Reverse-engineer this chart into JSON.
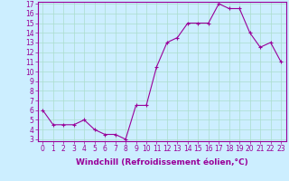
{
  "x": [
    0,
    1,
    2,
    3,
    4,
    5,
    6,
    7,
    8,
    9,
    10,
    11,
    12,
    13,
    14,
    15,
    16,
    17,
    18,
    19,
    20,
    21,
    22,
    23
  ],
  "y": [
    6,
    4.5,
    4.5,
    4.5,
    5,
    4,
    3.5,
    3.5,
    3,
    6.5,
    6.5,
    10.5,
    13,
    13.5,
    15,
    15,
    15,
    17,
    16.5,
    16.5,
    14,
    12.5,
    13,
    11
  ],
  "line_color": "#990099",
  "marker_color": "#990099",
  "bg_color": "#cceeff",
  "grid_color": "#aaddcc",
  "xlabel": "Windchill (Refroidissement éolien,°C)",
  "ylim": [
    3,
    17
  ],
  "xlim": [
    -0.5,
    23.5
  ],
  "yticks": [
    3,
    4,
    5,
    6,
    7,
    8,
    9,
    10,
    11,
    12,
    13,
    14,
    15,
    16,
    17
  ],
  "xticks": [
    0,
    1,
    2,
    3,
    4,
    5,
    6,
    7,
    8,
    9,
    10,
    11,
    12,
    13,
    14,
    15,
    16,
    17,
    18,
    19,
    20,
    21,
    22,
    23
  ],
  "tick_fontsize": 5.5,
  "label_fontsize": 6.5
}
